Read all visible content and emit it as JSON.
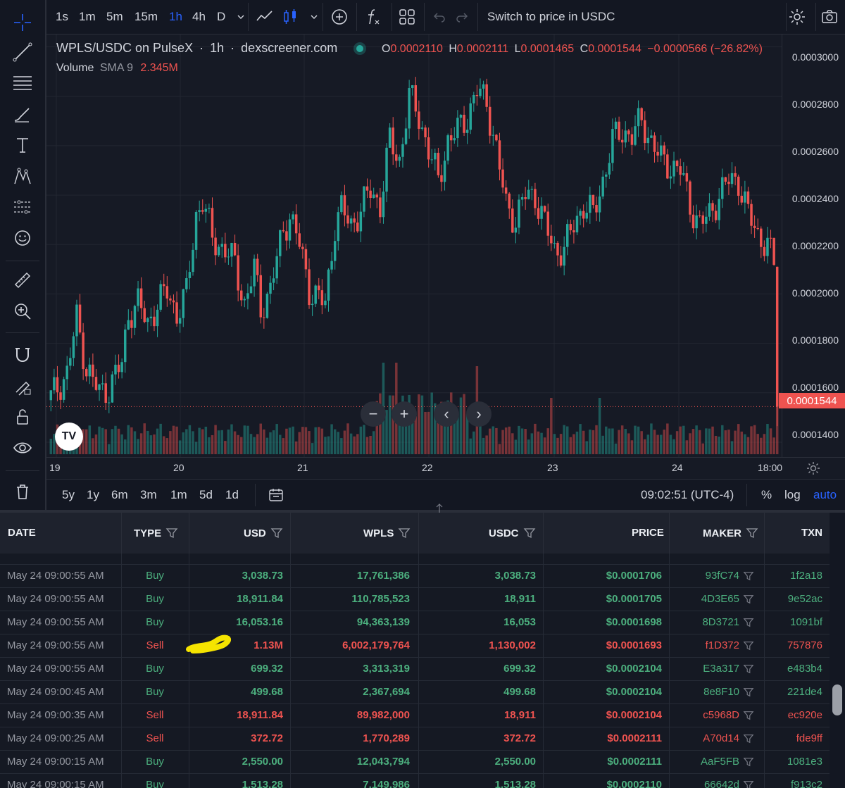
{
  "top_toolbar": {
    "intervals": [
      "1s",
      "1m",
      "5m",
      "15m",
      "1h",
      "4h",
      "D"
    ],
    "active_interval": "1h",
    "switch_label": "Switch to price in USDC"
  },
  "legend": {
    "symbol": "WPLS/USDC on PulseX",
    "interval": "1h",
    "source": "dexscreener.com",
    "o_label": "O",
    "o_value": "0.0002110",
    "h_label": "H",
    "h_value": "0.0002111",
    "l_label": "L",
    "l_value": "0.0001465",
    "c_label": "C",
    "c_value": "0.0001544",
    "change": "−0.0000566 (−26.82%)",
    "volume_label": "Volume",
    "sma_label": "SMA 9",
    "volume_value": "2.345M"
  },
  "price_scale": {
    "ticks": [
      "0.0003000",
      "0.0002800",
      "0.0002600",
      "0.0002400",
      "0.0002200",
      "0.0002000",
      "0.0001800",
      "0.0001600",
      "0.0001400"
    ],
    "current_price": "0.0001544"
  },
  "time_scale": {
    "ticks": [
      "19",
      "20",
      "21",
      "22",
      "23",
      "24",
      "18:00"
    ]
  },
  "bottom_toolbar": {
    "ranges": [
      "5y",
      "1y",
      "6m",
      "3m",
      "1m",
      "5d",
      "1d"
    ],
    "time": "09:02:51 (UTC-4)",
    "percent": "%",
    "log": "log",
    "auto": "auto"
  },
  "colors": {
    "up": "#26a69a",
    "down": "#ef5350",
    "background": "#131722",
    "accent": "#2962ff"
  },
  "chart_data": {
    "type": "candlestick",
    "title": "WPLS/USDC on PulseX · 1h",
    "x_ticks": [
      "19",
      "20",
      "21",
      "22",
      "23",
      "24",
      "18:00"
    ],
    "y_range": [
      0.000134,
      0.000305
    ],
    "volume_sma": "2.345M",
    "last_price": 0.0001544,
    "ohlc_last": {
      "open": 0.000211,
      "high": 0.0002111,
      "low": 0.0001465,
      "close": 0.0001544
    }
  },
  "table": {
    "headers": {
      "date": "DATE",
      "type": "TYPE",
      "usd": "USD",
      "wpls": "WPLS",
      "usdc": "USDC",
      "price": "PRICE",
      "maker": "MAKER",
      "txn": "TXN"
    },
    "rows": [
      {
        "date": "May 24 09:00:55 AM",
        "type": "Buy",
        "usd": "3,038.73",
        "wpls": "17,761,386",
        "usdc": "3,038.73",
        "price": "$0.0001706",
        "maker": "93fC74",
        "txn": "1f2a18"
      },
      {
        "date": "May 24 09:00:55 AM",
        "type": "Buy",
        "usd": "18,911.84",
        "wpls": "110,785,523",
        "usdc": "18,911",
        "price": "$0.0001705",
        "maker": "4D3E65",
        "txn": "9e52ac"
      },
      {
        "date": "May 24 09:00:55 AM",
        "type": "Buy",
        "usd": "16,053.16",
        "wpls": "94,363,139",
        "usdc": "16,053",
        "price": "$0.0001698",
        "maker": "8D3721",
        "txn": "1091bf"
      },
      {
        "date": "May 24 09:00:55 AM",
        "type": "Sell",
        "usd": "1.13M",
        "wpls": "6,002,179,764",
        "usdc": "1,130,002",
        "price": "$0.0001693",
        "maker": "f1D372",
        "txn": "757876"
      },
      {
        "date": "May 24 09:00:55 AM",
        "type": "Buy",
        "usd": "699.32",
        "wpls": "3,313,319",
        "usdc": "699.32",
        "price": "$0.0002104",
        "maker": "E3a317",
        "txn": "e483b4"
      },
      {
        "date": "May 24 09:00:45 AM",
        "type": "Buy",
        "usd": "499.68",
        "wpls": "2,367,694",
        "usdc": "499.68",
        "price": "$0.0002104",
        "maker": "8e8F10",
        "txn": "221de4"
      },
      {
        "date": "May 24 09:00:35 AM",
        "type": "Sell",
        "usd": "18,911.84",
        "wpls": "89,982,000",
        "usdc": "18,911",
        "price": "$0.0002104",
        "maker": "c5968D",
        "txn": "ec920e"
      },
      {
        "date": "May 24 09:00:25 AM",
        "type": "Sell",
        "usd": "372.72",
        "wpls": "1,770,289",
        "usdc": "372.72",
        "price": "$0.0002111",
        "maker": "A70d14",
        "txn": "fde9ff"
      },
      {
        "date": "May 24 09:00:15 AM",
        "type": "Buy",
        "usd": "2,550.00",
        "wpls": "12,043,794",
        "usdc": "2,550.00",
        "price": "$0.0002111",
        "maker": "AaF5FB",
        "txn": "1081e3"
      },
      {
        "date": "May 24 09:00:15 AM",
        "type": "Buy",
        "usd": "1,513.28",
        "wpls": "7,149,986",
        "usdc": "1,513.28",
        "price": "$0.0002110",
        "maker": "66642d",
        "txn": "f913c2"
      }
    ]
  }
}
